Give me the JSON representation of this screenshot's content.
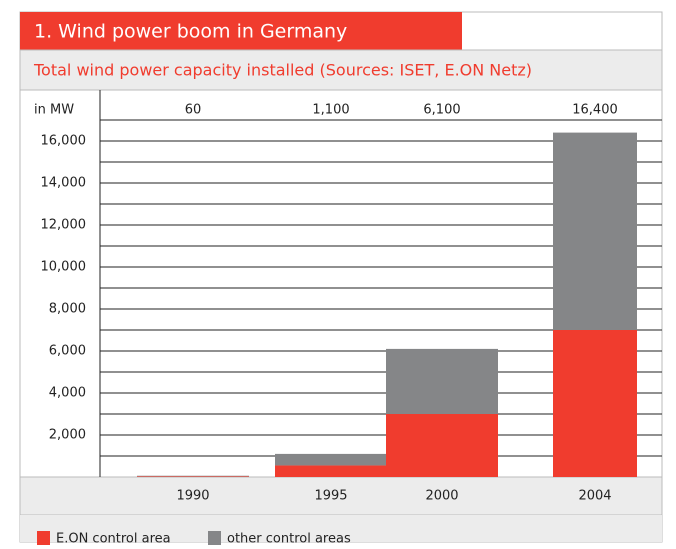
{
  "chart_data": {
    "type": "bar",
    "stacked": true,
    "title": "1. Wind power boom in Germany",
    "subtitle": "Total wind power capacity installed   (Sources: ISET, E.ON Netz)",
    "y_label": "in MW",
    "categories": [
      "1990",
      "1995",
      "2000",
      "2004"
    ],
    "totals": [
      60,
      1100,
      6100,
      16400
    ],
    "total_labels": [
      "60",
      "1,100",
      "6,100",
      "16,400"
    ],
    "series": [
      {
        "name": "E.ON control area",
        "color": "#f03c2e",
        "values": [
          30,
          550,
          3000,
          7000
        ]
      },
      {
        "name": "other control areas",
        "color": "#858688",
        "values": [
          30,
          550,
          3100,
          9400
        ]
      }
    ],
    "ylim": [
      0,
      17000
    ],
    "yticks": [
      {
        "value": 2000,
        "label": "2,000"
      },
      {
        "value": 4000,
        "label": "4,000"
      },
      {
        "value": 6000,
        "label": "6,000"
      },
      {
        "value": 8000,
        "label": "8,000"
      },
      {
        "value": 10000,
        "label": "10,000"
      },
      {
        "value": 12000,
        "label": "12,000"
      },
      {
        "value": 14000,
        "label": "14,000"
      },
      {
        "value": 16000,
        "label": "16,000"
      }
    ],
    "minor_yticks": [
      1000,
      3000,
      5000,
      7000,
      9000,
      11000,
      13000,
      15000,
      17000
    ],
    "grid": true
  }
}
